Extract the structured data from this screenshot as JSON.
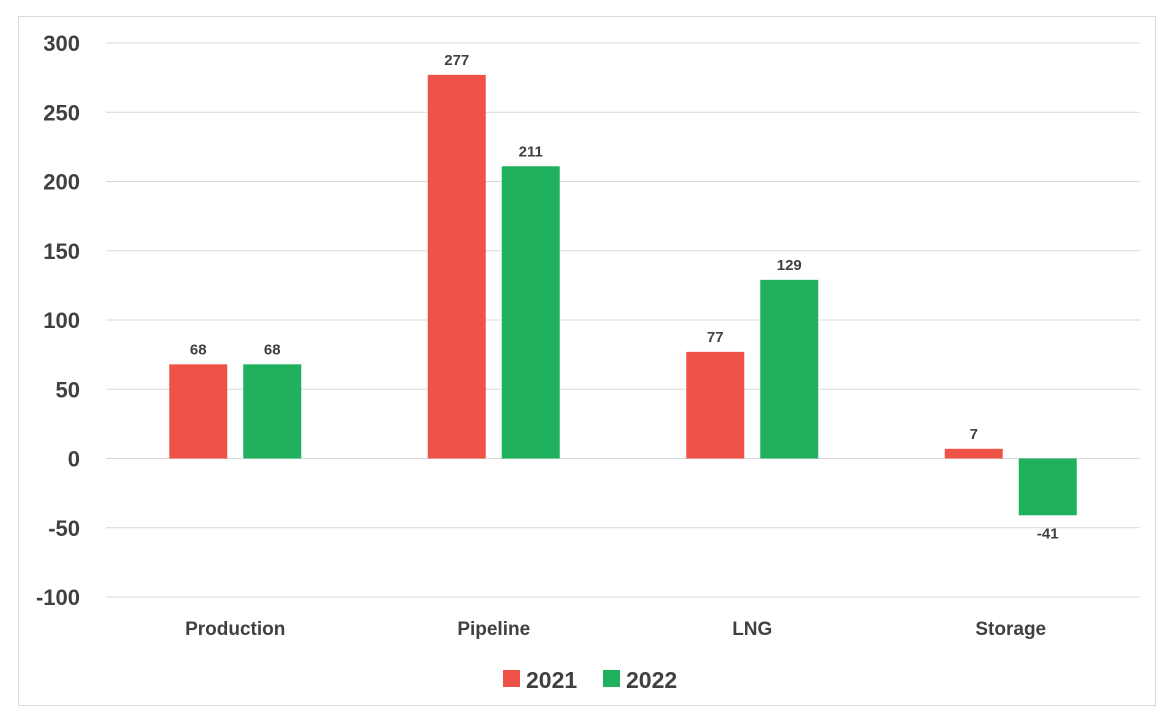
{
  "chart_data": {
    "type": "bar",
    "categories": [
      "Production",
      "Pipeline",
      "LNG",
      "Storage"
    ],
    "series": [
      {
        "name": "2021",
        "color": "#ef5348",
        "values": [
          68,
          277,
          77,
          7
        ]
      },
      {
        "name": "2022",
        "color": "#20b15e",
        "values": [
          68,
          211,
          129,
          -41
        ]
      }
    ],
    "ylim": [
      -100,
      300
    ],
    "yticks": [
      300,
      250,
      200,
      150,
      100,
      50,
      0,
      -50,
      -100
    ],
    "grid": true,
    "legend": "bottom",
    "title": "",
    "xlabel": "",
    "ylabel": ""
  },
  "colors": {
    "grid": "#d9d9d9",
    "text": "#404040",
    "frame": "#d9d9d9"
  }
}
